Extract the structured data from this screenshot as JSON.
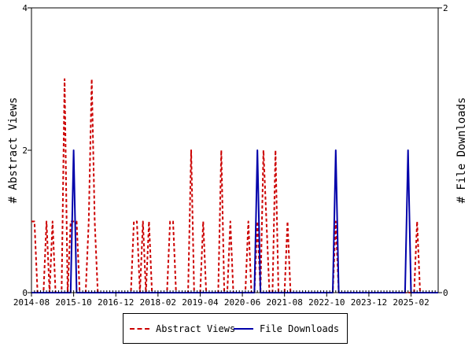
{
  "chart_data": {
    "type": "line",
    "x_tick_labels": [
      "2014-08",
      "2015-10",
      "2016-12",
      "2018-02",
      "2019-04",
      "2020-06",
      "2021-08",
      "2022-10",
      "2023-12",
      "2025-02"
    ],
    "x_range": [
      "2014-08",
      "2025-11"
    ],
    "y_left": {
      "label": "# Abstract Views",
      "ylim": [
        0,
        4
      ],
      "ticks": [
        0,
        2,
        4
      ]
    },
    "y_right": {
      "label": "# File Downloads",
      "ylim": [
        0,
        2
      ],
      "ticks": [
        0,
        2
      ]
    },
    "grid": false,
    "legend_position": "bottom-center",
    "series": [
      {
        "name": "Abstract Views",
        "axis": "left",
        "color": "#cc0000",
        "line_style": "dashed",
        "points": [
          {
            "x": "2014-08",
            "y": 1
          },
          {
            "x": "2014-09",
            "y": 1
          },
          {
            "x": "2014-10",
            "y": 0
          },
          {
            "x": "2014-12",
            "y": 0
          },
          {
            "x": "2015-01",
            "y": 1
          },
          {
            "x": "2015-02",
            "y": 0
          },
          {
            "x": "2015-03",
            "y": 1
          },
          {
            "x": "2015-04",
            "y": 0
          },
          {
            "x": "2015-06",
            "y": 0
          },
          {
            "x": "2015-07",
            "y": 3
          },
          {
            "x": "2015-08",
            "y": 0
          },
          {
            "x": "2015-09",
            "y": 1
          },
          {
            "x": "2015-10",
            "y": 1
          },
          {
            "x": "2015-11",
            "y": 1
          },
          {
            "x": "2015-12",
            "y": 0
          },
          {
            "x": "2016-02",
            "y": 0
          },
          {
            "x": "2016-03",
            "y": 1
          },
          {
            "x": "2016-04",
            "y": 3
          },
          {
            "x": "2016-05",
            "y": 1
          },
          {
            "x": "2016-06",
            "y": 0
          },
          {
            "x": "2017-05",
            "y": 0
          },
          {
            "x": "2017-06",
            "y": 1
          },
          {
            "x": "2017-07",
            "y": 1
          },
          {
            "x": "2017-08",
            "y": 0
          },
          {
            "x": "2017-09",
            "y": 1
          },
          {
            "x": "2017-10",
            "y": 0
          },
          {
            "x": "2017-11",
            "y": 1
          },
          {
            "x": "2017-12",
            "y": 0
          },
          {
            "x": "2018-05",
            "y": 0
          },
          {
            "x": "2018-06",
            "y": 1
          },
          {
            "x": "2018-07",
            "y": 1
          },
          {
            "x": "2018-08",
            "y": 0
          },
          {
            "x": "2018-12",
            "y": 0
          },
          {
            "x": "2019-01",
            "y": 2
          },
          {
            "x": "2019-02",
            "y": 0
          },
          {
            "x": "2019-04",
            "y": 0
          },
          {
            "x": "2019-05",
            "y": 1
          },
          {
            "x": "2019-06",
            "y": 0
          },
          {
            "x": "2019-10",
            "y": 0
          },
          {
            "x": "2019-11",
            "y": 2
          },
          {
            "x": "2019-12",
            "y": 0
          },
          {
            "x": "2020-01",
            "y": 0
          },
          {
            "x": "2020-02",
            "y": 1
          },
          {
            "x": "2020-03",
            "y": 0
          },
          {
            "x": "2020-07",
            "y": 0
          },
          {
            "x": "2020-08",
            "y": 1
          },
          {
            "x": "2020-09",
            "y": 0
          },
          {
            "x": "2020-10",
            "y": 0
          },
          {
            "x": "2020-11",
            "y": 1
          },
          {
            "x": "2020-12",
            "y": 0
          },
          {
            "x": "2021-01",
            "y": 2
          },
          {
            "x": "2021-02",
            "y": 1
          },
          {
            "x": "2021-03",
            "y": 0
          },
          {
            "x": "2021-04",
            "y": 0
          },
          {
            "x": "2021-05",
            "y": 2
          },
          {
            "x": "2021-06",
            "y": 0
          },
          {
            "x": "2021-08",
            "y": 0
          },
          {
            "x": "2021-09",
            "y": 1
          },
          {
            "x": "2021-10",
            "y": 0
          },
          {
            "x": "2022-12",
            "y": 0
          },
          {
            "x": "2023-01",
            "y": 1
          },
          {
            "x": "2023-02",
            "y": 0
          },
          {
            "x": "2025-03",
            "y": 0
          },
          {
            "x": "2025-04",
            "y": 1
          },
          {
            "x": "2025-05",
            "y": 0
          },
          {
            "x": "2025-11",
            "y": 0
          }
        ]
      },
      {
        "name": "File Downloads",
        "axis": "right",
        "color": "#0000aa",
        "line_style": "solid",
        "points": [
          {
            "x": "2014-08",
            "y": 0
          },
          {
            "x": "2015-09",
            "y": 0
          },
          {
            "x": "2015-10",
            "y": 1
          },
          {
            "x": "2015-11",
            "y": 0
          },
          {
            "x": "2020-10",
            "y": 0
          },
          {
            "x": "2020-11",
            "y": 1
          },
          {
            "x": "2020-12",
            "y": 0
          },
          {
            "x": "2022-12",
            "y": 0
          },
          {
            "x": "2023-01",
            "y": 1
          },
          {
            "x": "2023-02",
            "y": 0
          },
          {
            "x": "2024-12",
            "y": 0
          },
          {
            "x": "2025-01",
            "y": 1
          },
          {
            "x": "2025-02",
            "y": 0
          },
          {
            "x": "2025-11",
            "y": 0
          }
        ]
      }
    ]
  }
}
